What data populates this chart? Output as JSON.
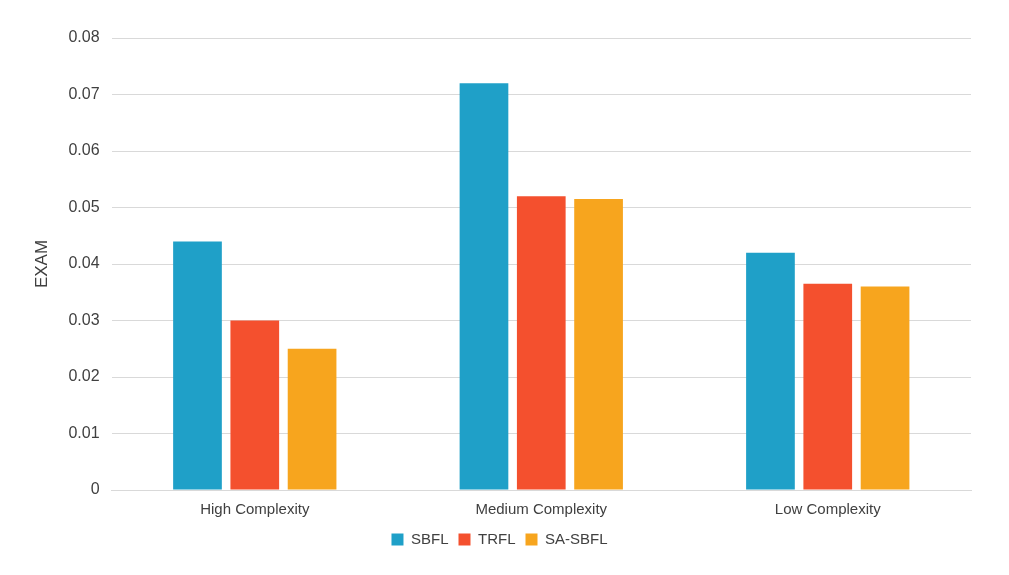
{
  "chart_data": {
    "type": "bar",
    "ylabel": "EXAM",
    "categories": [
      "High Complexity",
      "Medium Complexity",
      "Low Complexity"
    ],
    "series": [
      {
        "name": "SBFL",
        "color": "#1fa0c8",
        "values": [
          0.044,
          0.072,
          0.042
        ]
      },
      {
        "name": "TRFL",
        "color": "#f4502e",
        "values": [
          0.03,
          0.052,
          0.0365
        ]
      },
      {
        "name": "SA-SBFL",
        "color": "#f7a51e",
        "values": [
          0.025,
          0.0515,
          0.036
        ]
      }
    ],
    "ylim": [
      0,
      0.08
    ],
    "yticks": [
      0,
      0.01,
      0.02,
      0.03,
      0.04,
      0.05,
      0.06,
      0.07,
      0.08
    ],
    "grid": "y",
    "legend": "bottom"
  }
}
